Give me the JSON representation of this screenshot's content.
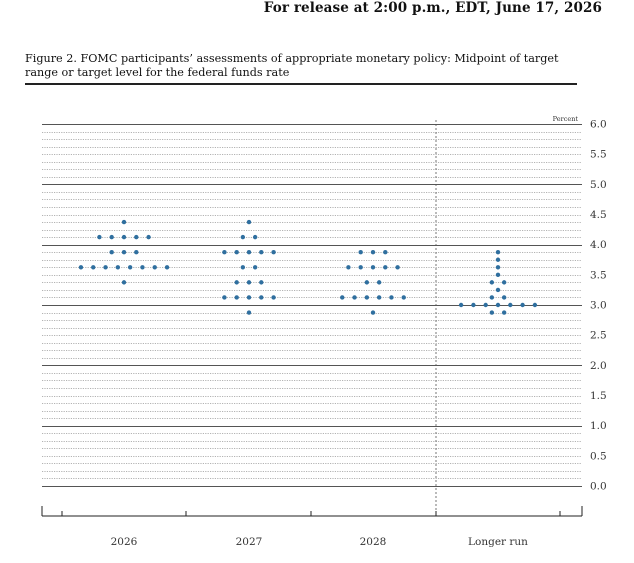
{
  "header": {
    "release": "For release at 2:00 p.m., EDT, June 17, 2026",
    "figure_title": "Figure 2. FOMC participants’ assessments of appropriate monetary policy: Midpoint of target range or target level for the federal funds rate"
  },
  "colors": {
    "dot": "#2f6f9f",
    "major_grid": "#555555",
    "minor_grid": "#9a9a9a"
  },
  "chart_data": {
    "type": "scatter",
    "title": "",
    "ylabel": "Percent",
    "xlabel": "",
    "ylim": [
      0,
      6.0
    ],
    "ytick_labels": [
      "6.0",
      "5.5",
      "5.0",
      "4.5",
      "4.0",
      "3.5",
      "3.0",
      "2.5",
      "2.0",
      "1.5",
      "1.0",
      "0.5",
      "0.0"
    ],
    "categories": [
      "2026",
      "2027",
      "2028",
      "Longer run"
    ],
    "grid": "horizontal every 0.125, solid lines at whole percents",
    "series": [
      {
        "category": "2026",
        "points": [
          {
            "y": 4.375,
            "count": 1
          },
          {
            "y": 4.125,
            "count": 5
          },
          {
            "y": 3.875,
            "count": 3
          },
          {
            "y": 3.625,
            "count": 8
          },
          {
            "y": 3.375,
            "count": 1
          }
        ]
      },
      {
        "category": "2027",
        "points": [
          {
            "y": 4.375,
            "count": 1
          },
          {
            "y": 4.125,
            "count": 2
          },
          {
            "y": 3.875,
            "count": 5
          },
          {
            "y": 3.625,
            "count": 2
          },
          {
            "y": 3.375,
            "count": 3
          },
          {
            "y": 3.125,
            "count": 5
          },
          {
            "y": 2.875,
            "count": 1
          }
        ]
      },
      {
        "category": "2028",
        "points": [
          {
            "y": 3.875,
            "count": 3
          },
          {
            "y": 3.625,
            "count": 5
          },
          {
            "y": 3.375,
            "count": 2
          },
          {
            "y": 3.125,
            "count": 6
          },
          {
            "y": 2.875,
            "count": 1
          }
        ]
      },
      {
        "category": "Longer run",
        "points": [
          {
            "y": 3.875,
            "count": 1
          },
          {
            "y": 3.75,
            "count": 1
          },
          {
            "y": 3.625,
            "count": 1
          },
          {
            "y": 3.5,
            "count": 1
          },
          {
            "y": 3.375,
            "count": 2
          },
          {
            "y": 3.25,
            "count": 1
          },
          {
            "y": 3.125,
            "count": 2
          },
          {
            "y": 3.0,
            "count": 7
          },
          {
            "y": 2.875,
            "count": 2
          }
        ]
      }
    ]
  }
}
